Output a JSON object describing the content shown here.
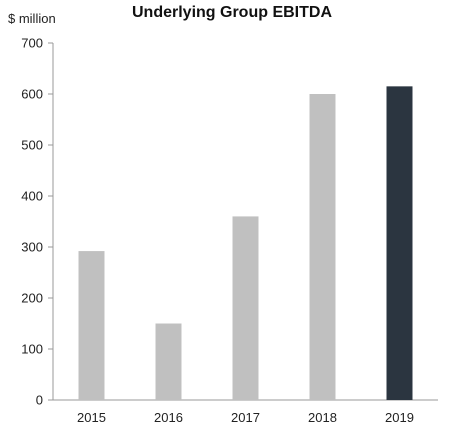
{
  "chart_data": {
    "type": "bar",
    "title": "Underlying Group EBITDA",
    "ylabel": "$ million",
    "xlabel": "",
    "categories": [
      "2015",
      "2016",
      "2017",
      "2018",
      "2019"
    ],
    "values": [
      292,
      150,
      360,
      600,
      615
    ],
    "ylim": [
      0,
      700
    ],
    "yticks": [
      0,
      100,
      200,
      300,
      400,
      500,
      600,
      700
    ],
    "bar_colors": [
      "#c0c0c0",
      "#c0c0c0",
      "#c0c0c0",
      "#c0c0c0",
      "#2b3540"
    ],
    "grid": false,
    "legend": "none"
  }
}
